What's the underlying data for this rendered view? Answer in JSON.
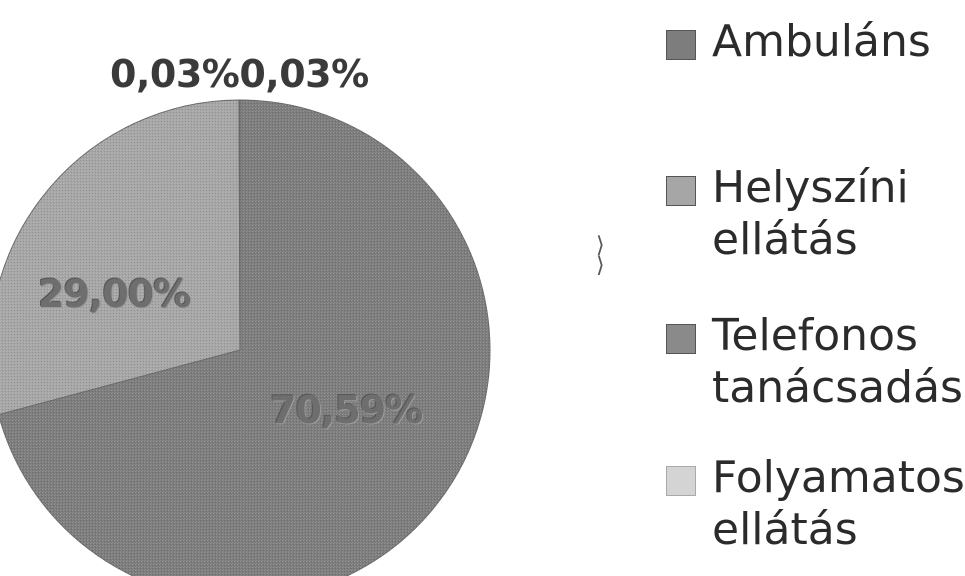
{
  "chart_data": {
    "type": "pie",
    "slices": [
      {
        "name": "Ambuláns",
        "value": 70.59,
        "label": "70,59%",
        "color": "#7d7d7d"
      },
      {
        "name": "Helyszíni ellátás",
        "value": 29.0,
        "label": "29,00%",
        "color": "#a6a6a6"
      },
      {
        "name": "Telefonos tanácsadás",
        "value": 0.03,
        "label": "0,03%",
        "color": "#8a8a8a"
      },
      {
        "name": "Folyamatos ellátás",
        "value": 0.03,
        "label": "0,03%",
        "color": "#c9c9c9"
      }
    ],
    "small_slice_labels": "0,03%0,03%",
    "legend": {
      "placement": "right",
      "items": [
        {
          "lines": [
            "Ambuláns"
          ],
          "color": "#7d7d7d"
        },
        {
          "lines": [
            "Helyszíni",
            "ellátás"
          ],
          "color": "#a6a6a6"
        },
        {
          "lines": [
            "Telefonos",
            "tanácsadás"
          ],
          "color": "#8a8a8a"
        },
        {
          "lines": [
            "Folyamatos",
            "ellátás"
          ],
          "color": "#d4d4d4"
        }
      ]
    }
  }
}
